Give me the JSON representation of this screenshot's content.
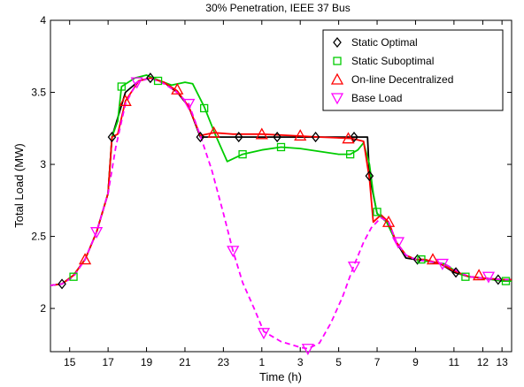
{
  "chart_data": {
    "type": "line",
    "title": "30% Penetration, IEEE 37 Bus",
    "xlabel": "Time (h)",
    "ylabel": "Total Load (MW)",
    "xlim": [
      14,
      38
    ],
    "ylim": [
      1.7,
      4
    ],
    "xticks": [
      {
        "value": 15,
        "label": "15"
      },
      {
        "value": 17,
        "label": "17"
      },
      {
        "value": 19,
        "label": "19"
      },
      {
        "value": 21,
        "label": "21"
      },
      {
        "value": 23,
        "label": "23"
      },
      {
        "value": 25,
        "label": "1"
      },
      {
        "value": 27,
        "label": "3"
      },
      {
        "value": 29,
        "label": "5"
      },
      {
        "value": 31,
        "label": "7"
      },
      {
        "value": 33,
        "label": "9"
      },
      {
        "value": 35,
        "label": "11"
      },
      {
        "value": 36.5,
        "label": "12"
      },
      {
        "value": 37.5,
        "label": "13"
      }
    ],
    "yticks": [
      2,
      2.5,
      3,
      3.5,
      4
    ],
    "legend_position": "top-right",
    "series": [
      {
        "name": "Static Optimal",
        "color": "#000000",
        "line_style": "solid",
        "marker": "diamond",
        "curve": [
          [
            14,
            2.16
          ],
          [
            14.6,
            2.17
          ],
          [
            15.2,
            2.23
          ],
          [
            15.8,
            2.34
          ],
          [
            16.4,
            2.53
          ],
          [
            17,
            2.8
          ],
          [
            17.2,
            3.19
          ],
          [
            17.9,
            3.5
          ],
          [
            18.6,
            3.58
          ],
          [
            19.2,
            3.6
          ],
          [
            19.9,
            3.57
          ],
          [
            20.6,
            3.5
          ],
          [
            21.2,
            3.4
          ],
          [
            21.8,
            3.19
          ],
          [
            22.5,
            3.19
          ],
          [
            24,
            3.19
          ],
          [
            26,
            3.19
          ],
          [
            28,
            3.19
          ],
          [
            30,
            3.19
          ],
          [
            30.5,
            3.19
          ],
          [
            30.6,
            2.92
          ],
          [
            31,
            2.66
          ],
          [
            31.5,
            2.6
          ],
          [
            32,
            2.46
          ],
          [
            32.5,
            2.35
          ],
          [
            33,
            2.34
          ],
          [
            33.5,
            2.33
          ],
          [
            34.3,
            2.31
          ],
          [
            35,
            2.25
          ],
          [
            35.8,
            2.22
          ],
          [
            36.5,
            2.21
          ],
          [
            37.5,
            2.2
          ],
          [
            38,
            2.2
          ]
        ],
        "markers": [
          [
            14.6,
            2.17
          ],
          [
            17.2,
            3.19
          ],
          [
            19.2,
            3.6
          ],
          [
            21.8,
            3.19
          ],
          [
            23.8,
            3.19
          ],
          [
            25.8,
            3.19
          ],
          [
            27.8,
            3.19
          ],
          [
            29.8,
            3.19
          ],
          [
            30.6,
            2.92
          ],
          [
            33.1,
            2.34
          ],
          [
            35.1,
            2.25
          ],
          [
            37.3,
            2.2
          ]
        ]
      },
      {
        "name": "Static Suboptimal",
        "color": "#00cc00",
        "line_style": "solid",
        "marker": "square",
        "curve": [
          [
            14,
            2.16
          ],
          [
            14.6,
            2.17
          ],
          [
            15.2,
            2.23
          ],
          [
            15.8,
            2.34
          ],
          [
            16.4,
            2.53
          ],
          [
            17,
            2.8
          ],
          [
            17.2,
            3.19
          ],
          [
            17.5,
            3.3
          ],
          [
            17.7,
            3.54
          ],
          [
            18.4,
            3.6
          ],
          [
            19,
            3.62
          ],
          [
            19.7,
            3.58
          ],
          [
            20.3,
            3.55
          ],
          [
            21,
            3.57
          ],
          [
            21.4,
            3.56
          ],
          [
            22,
            3.4
          ],
          [
            22.6,
            3.2
          ],
          [
            23.2,
            3.02
          ],
          [
            24,
            3.07
          ],
          [
            25,
            3.1
          ],
          [
            26,
            3.12
          ],
          [
            27,
            3.11
          ],
          [
            28,
            3.09
          ],
          [
            29,
            3.07
          ],
          [
            29.6,
            3.07
          ],
          [
            30,
            3.1
          ],
          [
            30.3,
            3.15
          ],
          [
            30.6,
            3.0
          ],
          [
            30.8,
            2.8
          ],
          [
            31,
            2.66
          ],
          [
            31.5,
            2.6
          ],
          [
            32,
            2.46
          ],
          [
            32.5,
            2.37
          ],
          [
            33,
            2.34
          ],
          [
            33.5,
            2.33
          ],
          [
            34.5,
            2.31
          ],
          [
            35.3,
            2.24
          ],
          [
            35.8,
            2.22
          ],
          [
            36.5,
            2.21
          ],
          [
            37.5,
            2.19
          ],
          [
            38,
            2.19
          ]
        ],
        "markers": [
          [
            15.2,
            2.22
          ],
          [
            17.7,
            3.54
          ],
          [
            19.6,
            3.58
          ],
          [
            22,
            3.39
          ],
          [
            24,
            3.07
          ],
          [
            26,
            3.12
          ],
          [
            29.6,
            3.07
          ],
          [
            31,
            2.67
          ],
          [
            33.3,
            2.34
          ],
          [
            35.6,
            2.22
          ],
          [
            37.7,
            2.19
          ]
        ]
      },
      {
        "name": "On-line Decentralized",
        "color": "#ff0000",
        "line_style": "solid",
        "marker": "triangle-up",
        "curve": [
          [
            14,
            2.16
          ],
          [
            14.6,
            2.17
          ],
          [
            15.2,
            2.23
          ],
          [
            15.8,
            2.34
          ],
          [
            16.4,
            2.53
          ],
          [
            17,
            2.8
          ],
          [
            17.2,
            3.19
          ],
          [
            17.5,
            3.21
          ],
          [
            17.9,
            3.44
          ],
          [
            18.6,
            3.58
          ],
          [
            19.2,
            3.6
          ],
          [
            19.9,
            3.57
          ],
          [
            20.6,
            3.51
          ],
          [
            21.2,
            3.4
          ],
          [
            21.8,
            3.2
          ],
          [
            22.5,
            3.22
          ],
          [
            23.5,
            3.21
          ],
          [
            25,
            3.21
          ],
          [
            26.5,
            3.2
          ],
          [
            28,
            3.19
          ],
          [
            29.7,
            3.18
          ],
          [
            30.3,
            3.16
          ],
          [
            30.6,
            2.9
          ],
          [
            30.8,
            2.6
          ],
          [
            31.2,
            2.65
          ],
          [
            31.6,
            2.6
          ],
          [
            32,
            2.46
          ],
          [
            32.5,
            2.37
          ],
          [
            33,
            2.34
          ],
          [
            33.5,
            2.34
          ],
          [
            34.3,
            2.31
          ],
          [
            35,
            2.26
          ],
          [
            35.8,
            2.22
          ],
          [
            36.5,
            2.21
          ],
          [
            37.5,
            2.2
          ],
          [
            38,
            2.2
          ]
        ],
        "markers": [
          [
            15.8,
            2.34
          ],
          [
            17.9,
            3.44
          ],
          [
            20.6,
            3.52
          ],
          [
            22.5,
            3.22
          ],
          [
            25,
            3.21
          ],
          [
            27,
            3.2
          ],
          [
            29.5,
            3.18
          ],
          [
            31.6,
            2.6
          ],
          [
            33.9,
            2.34
          ],
          [
            36.3,
            2.23
          ]
        ]
      },
      {
        "name": "Base Load",
        "color": "#ff00ff",
        "line_style": "dashed",
        "marker": "triangle-down",
        "curve": [
          [
            14,
            2.16
          ],
          [
            14.6,
            2.17
          ],
          [
            15.2,
            2.22
          ],
          [
            15.8,
            2.34
          ],
          [
            16.4,
            2.53
          ],
          [
            17,
            2.8
          ],
          [
            17.4,
            3.12
          ],
          [
            17.9,
            3.42
          ],
          [
            18.5,
            3.57
          ],
          [
            19.2,
            3.6
          ],
          [
            19.9,
            3.56
          ],
          [
            20.5,
            3.51
          ],
          [
            21.2,
            3.42
          ],
          [
            21.8,
            3.2
          ],
          [
            22.4,
            2.96
          ],
          [
            23,
            2.66
          ],
          [
            23.5,
            2.4
          ],
          [
            24,
            2.18
          ],
          [
            24.6,
            2.0
          ],
          [
            25.1,
            1.84
          ],
          [
            26,
            1.77
          ],
          [
            27,
            1.73
          ],
          [
            27.4,
            1.72
          ],
          [
            28,
            1.76
          ],
          [
            28.6,
            1.9
          ],
          [
            29.2,
            2.08
          ],
          [
            29.8,
            2.3
          ],
          [
            30.3,
            2.46
          ],
          [
            30.7,
            2.56
          ],
          [
            31.2,
            2.63
          ],
          [
            31.6,
            2.6
          ],
          [
            32,
            2.46
          ],
          [
            32.5,
            2.37
          ],
          [
            33,
            2.34
          ],
          [
            33.5,
            2.33
          ],
          [
            34.5,
            2.31
          ],
          [
            35.3,
            2.25
          ],
          [
            35.8,
            2.22
          ],
          [
            36.5,
            2.21
          ],
          [
            37.5,
            2.2
          ],
          [
            38,
            2.2
          ]
        ],
        "markers": [
          [
            16.4,
            2.53
          ],
          [
            18.5,
            3.57
          ],
          [
            21.2,
            3.42
          ],
          [
            23.5,
            2.4
          ],
          [
            25.1,
            1.83
          ],
          [
            27.4,
            1.72
          ],
          [
            29.8,
            2.29
          ],
          [
            32.1,
            2.46
          ],
          [
            34.4,
            2.31
          ],
          [
            36.8,
            2.22
          ]
        ]
      }
    ]
  }
}
